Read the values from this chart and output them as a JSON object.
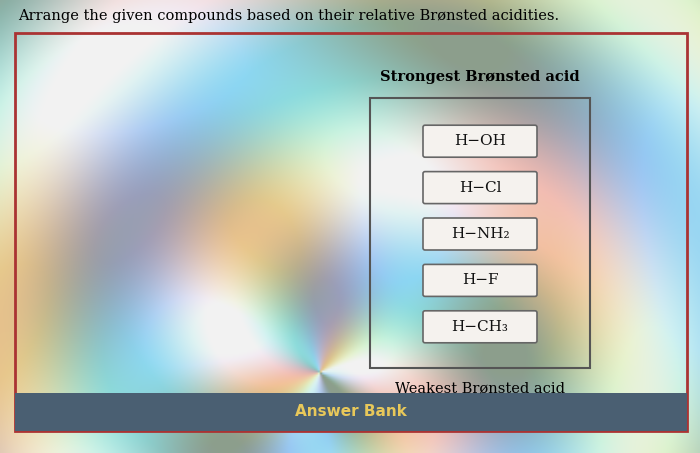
{
  "title": "Arrange the given compounds based on their relative Brønsted acidities.",
  "top_label": "Strongest Brønsted acid",
  "bottom_label": "Weakest Brønsted acid",
  "answer_bank_label": "Answer Bank",
  "compounds": [
    "H−OH",
    "H−Cl",
    "H−NH₂",
    "H−F",
    "H−CH₃"
  ],
  "bg_color": "#ddeedd",
  "outer_border_color": "#aa3333",
  "compound_box_bg": "#f5f2ee",
  "compound_box_border": "#666666",
  "inner_box_border": "#555555",
  "answer_bank_bg": "#4a5f72",
  "answer_bank_text": "#e8c85a",
  "title_fontsize": 10.5,
  "label_fontsize": 10.5,
  "compound_fontsize": 11,
  "answer_bank_fontsize": 11
}
